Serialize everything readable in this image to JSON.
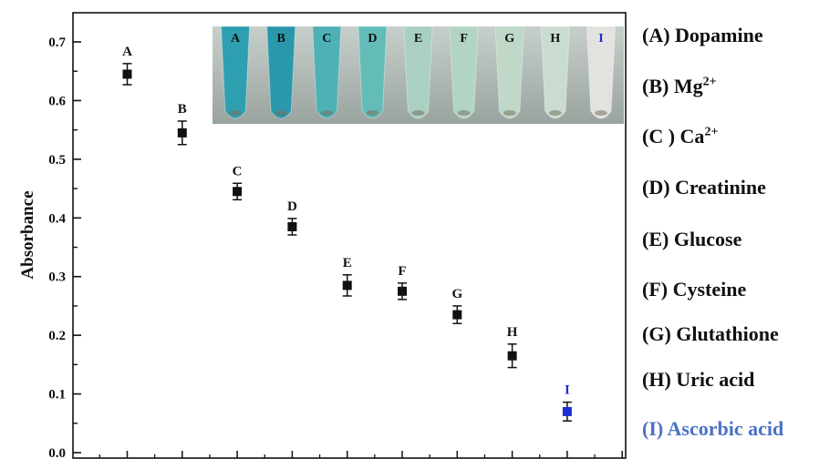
{
  "chart_data": {
    "type": "scatter",
    "ylabel": "Absorbance",
    "xlabel": "",
    "ylim": [
      0,
      0.7
    ],
    "yticks": [
      "0.0",
      "0.1",
      "0.2",
      "0.3",
      "0.4",
      "0.5",
      "0.6",
      "0.7"
    ],
    "points": [
      {
        "label": "A",
        "y": 0.645,
        "err": 0.018,
        "color": "#111111"
      },
      {
        "label": "B",
        "y": 0.545,
        "err": 0.02,
        "color": "#111111"
      },
      {
        "label": "C",
        "y": 0.445,
        "err": 0.014,
        "color": "#111111"
      },
      {
        "label": "D",
        "y": 0.385,
        "err": 0.014,
        "color": "#111111"
      },
      {
        "label": "E",
        "y": 0.285,
        "err": 0.018,
        "color": "#111111"
      },
      {
        "label": "F",
        "y": 0.275,
        "err": 0.014,
        "color": "#111111"
      },
      {
        "label": "G",
        "y": 0.235,
        "err": 0.015,
        "color": "#111111"
      },
      {
        "label": "H",
        "y": 0.165,
        "err": 0.02,
        "color": "#111111"
      },
      {
        "label": "I",
        "y": 0.07,
        "err": 0.016,
        "color": "#1e2bd6"
      }
    ],
    "inset_tubes": [
      {
        "label": "A",
        "color": "#2e9fb0"
      },
      {
        "label": "B",
        "color": "#2a98ab"
      },
      {
        "label": "C",
        "color": "#4eb1b6"
      },
      {
        "label": "D",
        "color": "#63bcb8"
      },
      {
        "label": "E",
        "color": "#a9d0c0"
      },
      {
        "label": "F",
        "color": "#b2d4c3"
      },
      {
        "label": "G",
        "color": "#bfd8c8"
      },
      {
        "label": "H",
        "color": "#cadccf"
      },
      {
        "label": "I",
        "color": "#e2e3df"
      }
    ],
    "inset_label_colors": {
      "default": "#111111",
      "I": "#1e2bd6"
    }
  },
  "legend": {
    "items": [
      {
        "prefix": "(A) Dopamine",
        "sup": "",
        "color": "#111111"
      },
      {
        "prefix": "(B) Mg",
        "sup": "2+",
        "color": "#111111"
      },
      {
        "prefix": "(C ) Ca",
        "sup": "2+",
        "color": "#111111"
      },
      {
        "prefix": "(D) Creatinine",
        "sup": "",
        "color": "#111111"
      },
      {
        "prefix": "(E) Glucose",
        "sup": "",
        "color": "#111111"
      },
      {
        "prefix": "(F) Cysteine",
        "sup": "",
        "color": "#111111"
      },
      {
        "prefix": "(G) Glutathione",
        "sup": "",
        "color": "#111111"
      },
      {
        "prefix": "(H) Uric acid",
        "sup": "",
        "color": "#111111"
      },
      {
        "prefix": "(I) Ascorbic acid",
        "sup": "",
        "color": "#4a72c4"
      }
    ]
  }
}
